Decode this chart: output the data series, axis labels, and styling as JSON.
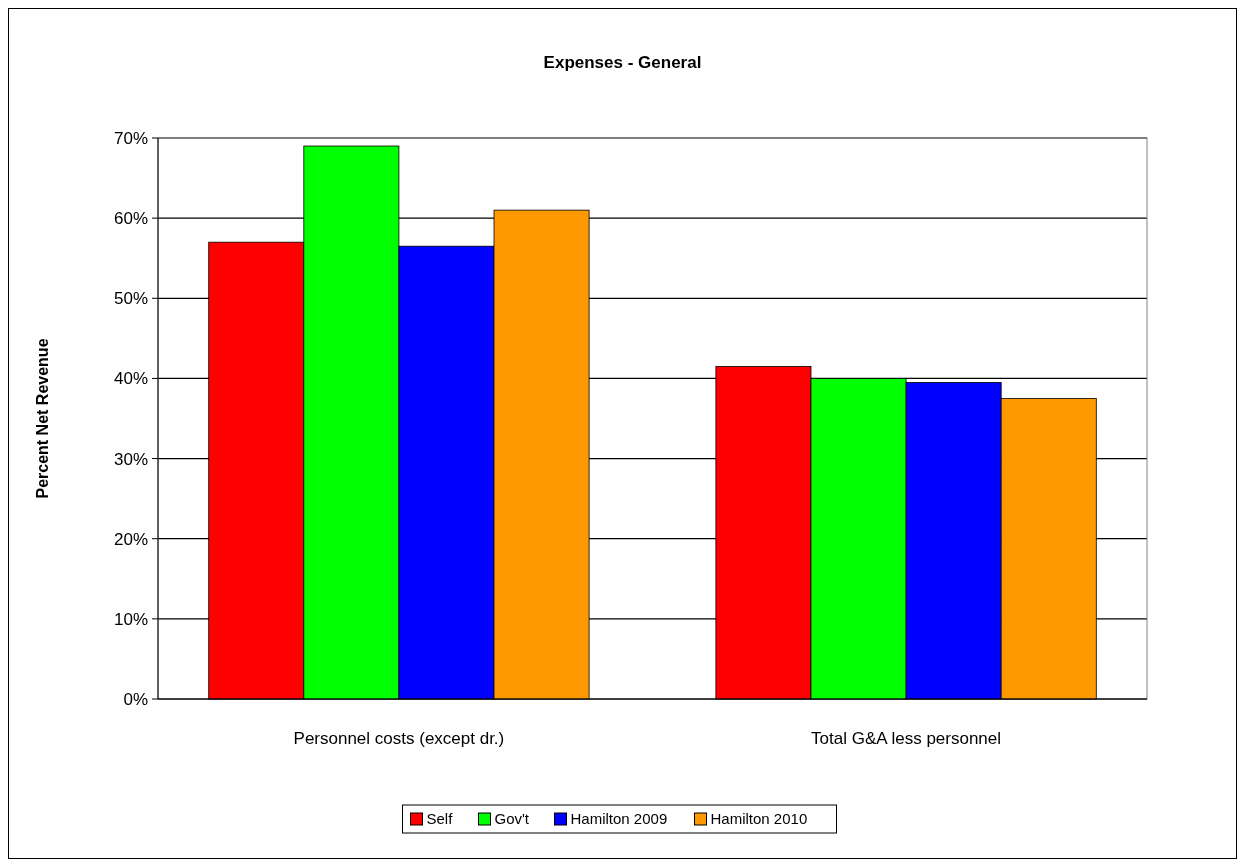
{
  "chart_data": {
    "type": "bar",
    "title": "Expenses - General",
    "ylabel": "Percent Net Revenue",
    "categories": [
      "Personnel costs (except dr.)",
      "Total G&A less personnel"
    ],
    "series": [
      {
        "name": "Self",
        "color": "#ff0000",
        "values": [
          57,
          41.5
        ]
      },
      {
        "name": "Gov't",
        "color": "#00ff00",
        "values": [
          69,
          40
        ]
      },
      {
        "name": "Hamilton 2009",
        "color": "#0000ff",
        "values": [
          56.5,
          39.5
        ]
      },
      {
        "name": "Hamilton 2010",
        "color": "#ff9900",
        "values": [
          61,
          37.5
        ]
      }
    ],
    "ylim": [
      0,
      70
    ],
    "yticks": [
      {
        "value": 0,
        "label": "0%"
      },
      {
        "value": 10,
        "label": "10%"
      },
      {
        "value": 20,
        "label": "20%"
      },
      {
        "value": 30,
        "label": "30%"
      },
      {
        "value": 40,
        "label": "40%"
      },
      {
        "value": 50,
        "label": "50%"
      },
      {
        "value": 60,
        "label": "60%"
      },
      {
        "value": 70,
        "label": "70%"
      }
    ],
    "grid": "y",
    "legend": "bottom"
  }
}
